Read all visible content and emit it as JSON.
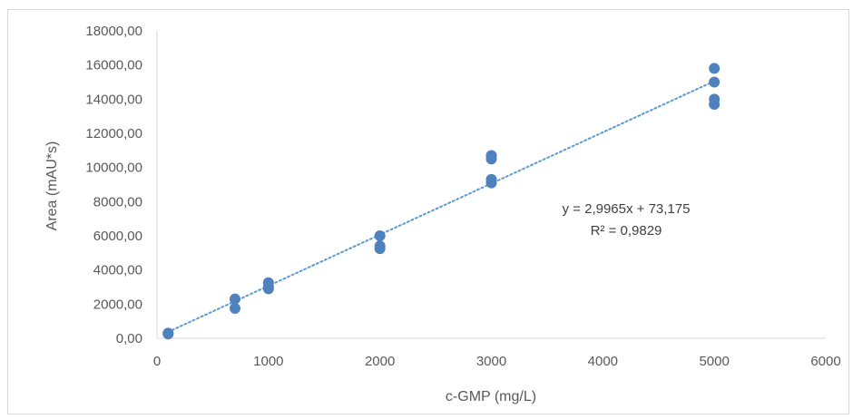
{
  "chart_data": {
    "type": "scatter",
    "xlabel": "c-GMP (mg/L)",
    "ylabel": "Area (mAU*s)",
    "xlim": [
      0,
      6000
    ],
    "ylim": [
      0,
      18000
    ],
    "x_ticks": [
      "0",
      "1000",
      "2000",
      "3000",
      "4000",
      "5000",
      "6000"
    ],
    "y_ticks": [
      "0,00",
      "2000,00",
      "4000,00",
      "6000,00",
      "8000,00",
      "10000,00",
      "12000,00",
      "14000,00",
      "16000,00",
      "18000,00"
    ],
    "grid": false,
    "marker_color": "#4f81bd",
    "trendline_color": "#5b9bd5",
    "series": [
      {
        "x": [
          100,
          100,
          700,
          700,
          1000,
          1000,
          1000,
          2000,
          2000,
          2000,
          3000,
          3000,
          3000,
          3000,
          5000,
          5000,
          5000,
          5000
        ],
        "y": [
          300,
          250,
          2300,
          1750,
          3250,
          3000,
          2900,
          6000,
          5400,
          5250,
          10700,
          10500,
          9300,
          9100,
          15800,
          15000,
          14000,
          13700
        ]
      }
    ],
    "trendline": {
      "type": "linear",
      "slope": 2.9965,
      "intercept": 73.175,
      "equation": "y = 2,9965x + 73,175",
      "r_squared": "R² = 0,9829"
    }
  }
}
